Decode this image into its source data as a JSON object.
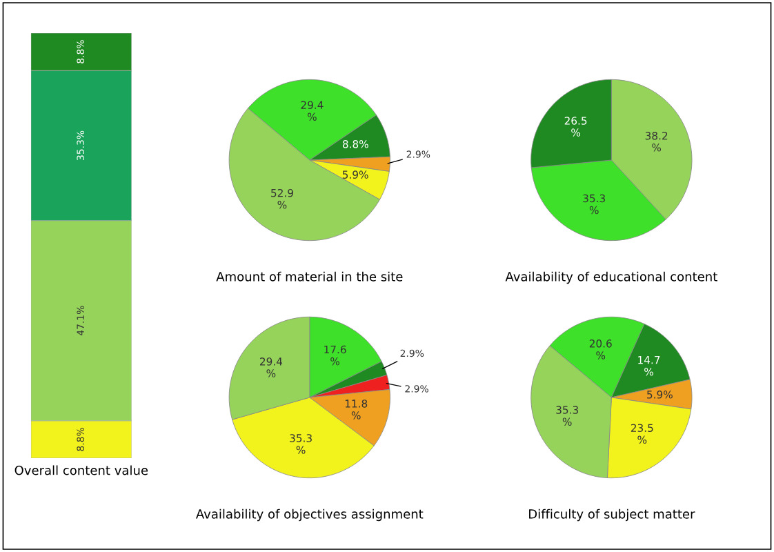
{
  "chart_data": [
    {
      "type": "bar",
      "stacked": true,
      "xlabel": "Overall content value",
      "categories": [
        null
      ],
      "data_labels": true,
      "series": [
        {
          "color": "#f2f21c",
          "values": [
            8.8
          ],
          "value_labels": [
            "8.8%"
          ]
        },
        {
          "color": "#96d35a",
          "values": [
            47.1
          ],
          "value_labels": [
            "47.1%"
          ]
        },
        {
          "color": "#1aa35a",
          "values": [
            35.3
          ],
          "value_labels": [
            "35.3%"
          ]
        },
        {
          "color": "#1f8a22",
          "values": [
            8.8
          ],
          "value_labels": [
            "8.8%"
          ]
        }
      ]
    },
    {
      "type": "pie",
      "title": "Amount of material in the site",
      "categories": [
        null,
        null,
        null,
        null,
        null
      ],
      "values": [
        29.4,
        8.8,
        2.9,
        5.9,
        52.9
      ],
      "colors": [
        "#3ee02a",
        "#1f8a22",
        "#f0a020",
        "#f2f21c",
        "#96d35a"
      ],
      "value_labels": [
        "29.4\n%",
        "8.8%",
        "2.9%",
        "5.9%",
        "52.9\n%"
      ]
    },
    {
      "type": "pie",
      "title": "Availability of educational content",
      "categories": [
        null,
        null,
        null
      ],
      "values": [
        38.2,
        35.3,
        26.5
      ],
      "colors": [
        "#96d35a",
        "#3ee02a",
        "#1f8a22"
      ],
      "value_labels": [
        "38.2\n%",
        "35.3\n%",
        "26.5\n%"
      ]
    },
    {
      "type": "pie",
      "title": "Availability of objectives assignment",
      "categories": [
        null,
        null,
        null,
        null,
        null,
        null
      ],
      "values": [
        17.6,
        2.9,
        2.9,
        11.8,
        35.3,
        29.4
      ],
      "colors": [
        "#3ee02a",
        "#1f8a22",
        "#ee2020",
        "#f0a020",
        "#f2f21c",
        "#96d35a"
      ],
      "value_labels": [
        "17.6\n%",
        "2.9%",
        "2.9%",
        "11.8\n%",
        "35.3\n%",
        "29.4\n%"
      ]
    },
    {
      "type": "pie",
      "title": "Difficulty of subject matter",
      "categories": [
        null,
        null,
        null,
        null,
        null
      ],
      "values": [
        20.6,
        14.7,
        5.9,
        23.5,
        35.3
      ],
      "colors": [
        "#3ee02a",
        "#1f8a22",
        "#f0a020",
        "#f2f21c",
        "#96d35a"
      ],
      "value_labels": [
        "20.6\n%",
        "14.7\n%",
        "5.9%",
        "23.5\n%",
        "35.3\n%"
      ]
    }
  ]
}
